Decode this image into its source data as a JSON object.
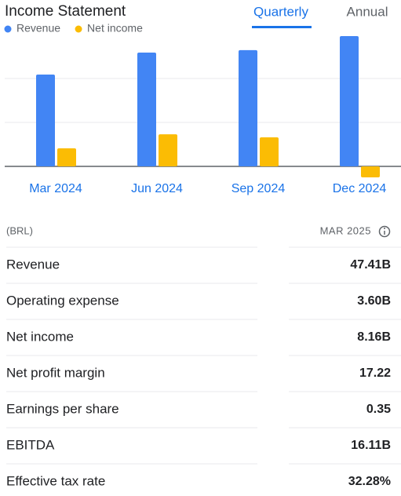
{
  "header": {
    "title": "Income Statement",
    "tabs": [
      "Quarterly",
      "Annual"
    ],
    "selected_tab": 0
  },
  "chart_data": {
    "type": "bar",
    "categories": [
      "Mar 2024",
      "Jun 2024",
      "Sep 2024",
      "Dec 2024"
    ],
    "series": [
      {
        "name": "Revenue",
        "color": "#4285f4",
        "values": [
          41.8,
          51.8,
          52.9,
          59.3
        ]
      },
      {
        "name": "Net income",
        "color": "#fbbc04",
        "values": [
          8.2,
          14.6,
          13.2,
          -5.0
        ]
      }
    ],
    "ylim": [
      -10,
      60
    ],
    "yticks": [
      0,
      20,
      40
    ],
    "grid": true,
    "legend": "top-left"
  },
  "table": {
    "unit": "(BRL)",
    "period": "MAR 2025",
    "rows": [
      [
        "Revenue",
        "47.41B"
      ],
      [
        "Operating expense",
        "3.60B"
      ],
      [
        "Net income",
        "8.16B"
      ],
      [
        "Net profit margin",
        "17.22"
      ],
      [
        "Earnings per share",
        "0.35"
      ],
      [
        "EBITDA",
        "16.11B"
      ],
      [
        "Effective tax rate",
        "32.28%"
      ]
    ]
  }
}
